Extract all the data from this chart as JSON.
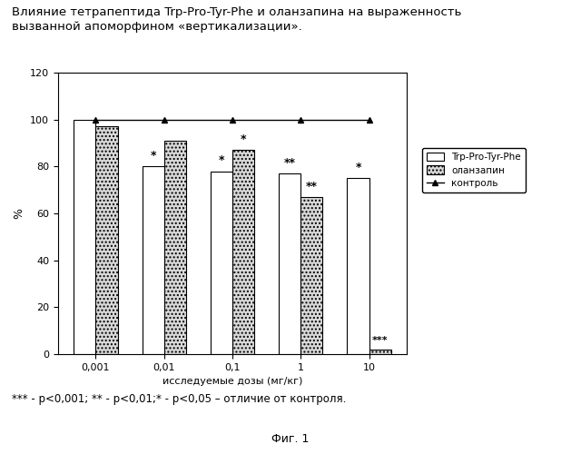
{
  "title_line1": "Влияние тетрапептида Trp-Pro-Tyr-Phe и оланзапина на выраженность",
  "title_line2": "вызванной апоморфином «вертикализации».",
  "xlabel": "исследуемые дозы (мг/кг)",
  "ylabel": "%",
  "doses": [
    "0,001",
    "0,01",
    "0,1",
    "1",
    "10"
  ],
  "trp_values": [
    100,
    80,
    78,
    77,
    75
  ],
  "olanz_values": [
    97,
    91,
    87,
    67,
    2
  ],
  "control_values": [
    100,
    100,
    100,
    100,
    100
  ],
  "ylim": [
    0,
    120
  ],
  "yticks": [
    0,
    20,
    40,
    60,
    80,
    100,
    120
  ],
  "bar_width": 0.32,
  "trp_color": "white",
  "olanz_hatch": "....",
  "olanz_color": "#d8d8d8",
  "trp_edgecolor": "black",
  "olanz_edgecolor": "black",
  "control_line_color": "black",
  "legend_labels": [
    "Trp-Pro-Tyr-Phe",
    "оланзапин",
    "контроль"
  ],
  "significance_trp": [
    "",
    "*",
    "*",
    "**",
    "*"
  ],
  "significance_olanz": [
    "",
    "",
    "*",
    "**",
    "***"
  ],
  "footnote": "*** - p<0,001; ** - p<0,01;* - p<0,05 – отличие от контроля.",
  "fig_label": "Фиг. 1",
  "background_color": "white",
  "plot_bg_color": "white"
}
